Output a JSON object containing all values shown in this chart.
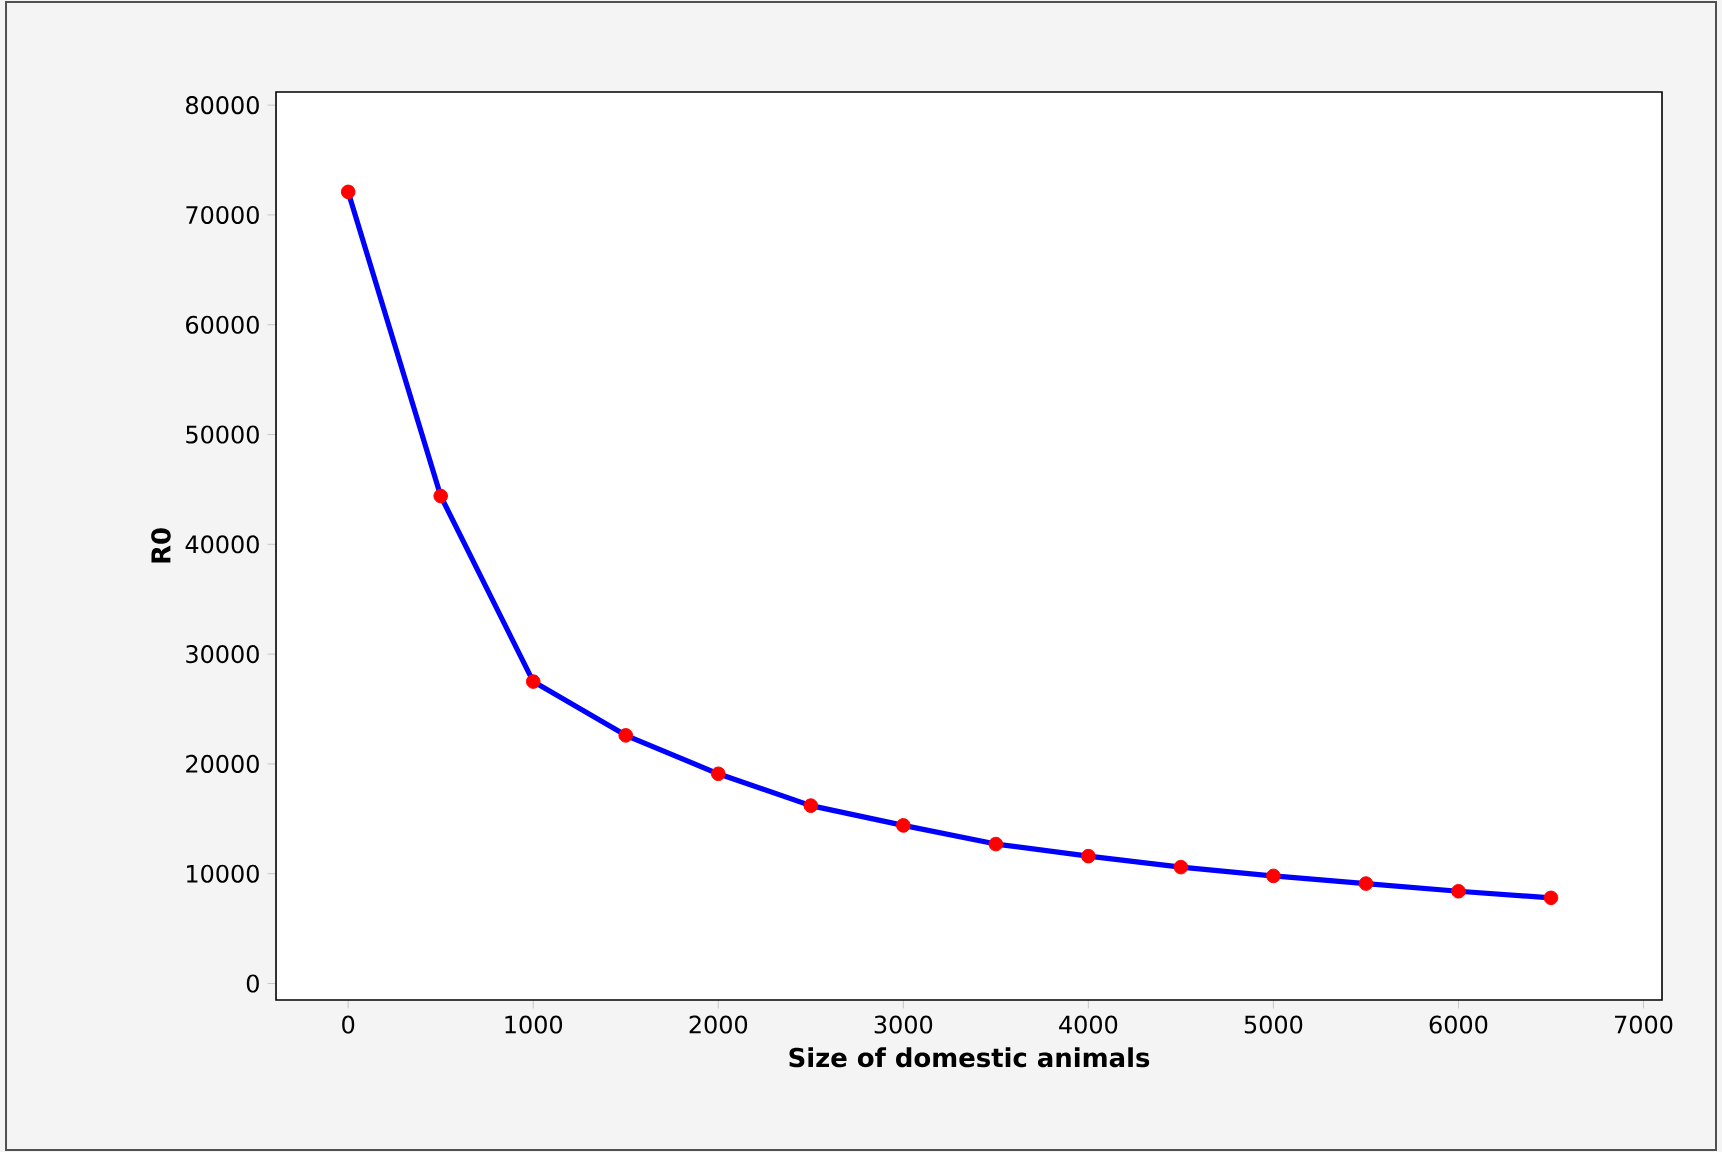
{
  "chart_data": {
    "type": "line",
    "xlabel": "Size of domestic animals",
    "ylabel": "R0",
    "x": [
      0,
      500,
      1000,
      1500,
      2000,
      2500,
      3000,
      3500,
      4000,
      4500,
      5000,
      5500,
      6000,
      6500
    ],
    "series": [
      {
        "color": "#0000ff",
        "colors": [
          "#ff0000",
          "#ff0000",
          "#ff0000",
          "#ff0000",
          "#ff0000",
          "#ff0000",
          "#ff0000",
          "#ff0000",
          "#ff0000",
          "#ff0000",
          "#ff0000",
          "#ff0000",
          "#ff0000",
          "#ff0000"
        ],
        "values": [
          72100,
          44400,
          27500,
          22600,
          19100,
          16200,
          14400,
          12700,
          11600,
          10600,
          9800,
          9100,
          8400,
          7800
        ]
      }
    ],
    "marker": "circle",
    "line_style": "solid",
    "xlim": [
      -390,
      7100
    ],
    "ylim": [
      -1500,
      81200
    ],
    "xticks": [
      0,
      1000,
      2000,
      3000,
      4000,
      5000,
      6000,
      7000
    ],
    "yticks": [
      0,
      10000,
      20000,
      30000,
      40000,
      50000,
      60000,
      70000,
      80000
    ]
  }
}
